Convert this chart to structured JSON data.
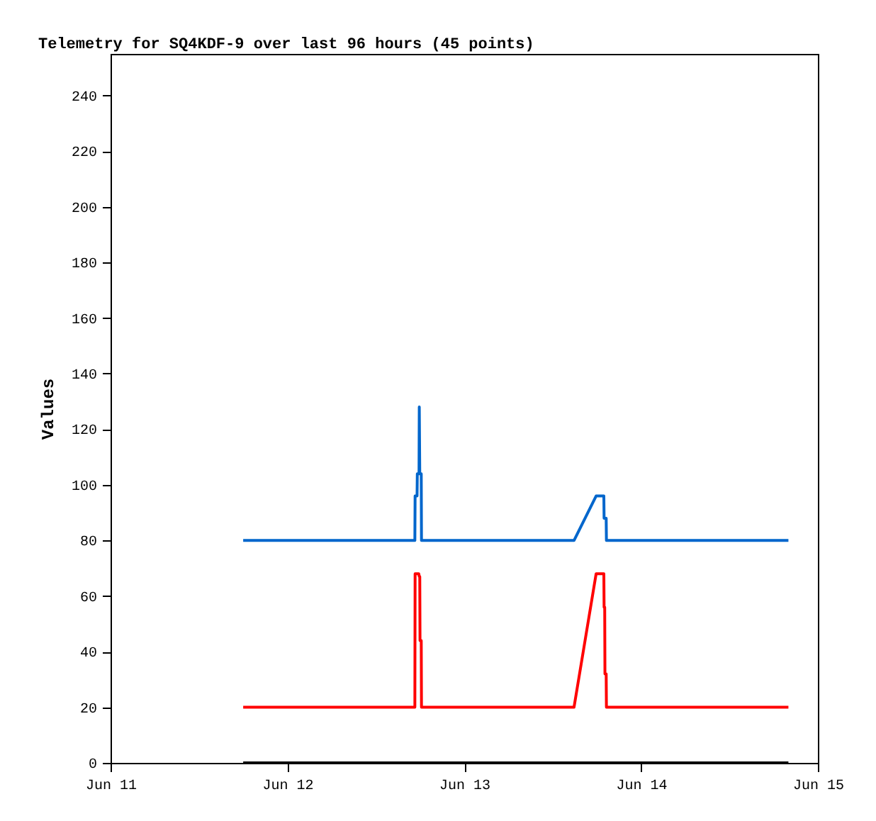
{
  "chart_data": {
    "type": "line",
    "title": "Telemetry for SQ4KDF-9 over last 96 hours (45 points)",
    "ylabel": "Values",
    "xlim": [
      "--06-11T00:00",
      "--06-15T00:00"
    ],
    "xticks": [
      {
        "value": "--06-11T00:00",
        "label": "Jun 11"
      },
      {
        "value": "--06-12T00:00",
        "label": "Jun 12"
      },
      {
        "value": "--06-13T00:00",
        "label": "Jun 13"
      },
      {
        "value": "--06-14T00:00",
        "label": "Jun 14"
      },
      {
        "value": "--06-15T00:00",
        "label": "Jun 15"
      }
    ],
    "ylim": [
      0,
      255
    ],
    "yticks": [
      0,
      20,
      40,
      60,
      80,
      100,
      120,
      140,
      160,
      180,
      200,
      220,
      240
    ],
    "grid": false,
    "legend": false,
    "line_style": "solid",
    "series": [
      {
        "color": "#0066cc",
        "x": [
          "--06-11T18:00",
          "--06-12T17:18",
          "--06-12T17:20",
          "--06-12T17:36",
          "--06-12T17:38",
          "--06-12T17:52",
          "--06-12T17:54",
          "--06-12T17:58",
          "--06-12T18:10",
          "--06-12T18:12",
          "--06-13T14:54",
          "--06-13T17:54",
          "--06-13T18:57",
          "--06-13T18:59",
          "--06-13T19:16",
          "--06-13T19:18",
          "--06-14T20:00"
        ],
        "values": [
          80,
          80,
          96,
          96,
          104,
          104,
          128,
          104,
          104,
          80,
          80,
          96,
          96,
          88,
          88,
          80,
          80
        ]
      },
      {
        "color": "#ff0000",
        "x": [
          "--06-11T18:00",
          "--06-12T17:18",
          "--06-12T17:20",
          "--06-12T17:50",
          "--06-12T17:54",
          "--06-12T17:58",
          "--06-12T18:00",
          "--06-12T18:10",
          "--06-12T18:12",
          "--06-13T14:54",
          "--06-13T17:54",
          "--06-13T18:57",
          "--06-13T18:59",
          "--06-13T19:04",
          "--06-13T19:06",
          "--06-13T19:16",
          "--06-13T19:18",
          "--06-14T20:00"
        ],
        "values": [
          20,
          20,
          68,
          68,
          67,
          67,
          44,
          44,
          20,
          20,
          68,
          68,
          56,
          56,
          32,
          32,
          20,
          20
        ]
      },
      {
        "color": "#000000",
        "x": [
          "--06-11T18:00",
          "--06-14T20:00"
        ],
        "values": [
          0,
          0
        ]
      }
    ]
  }
}
